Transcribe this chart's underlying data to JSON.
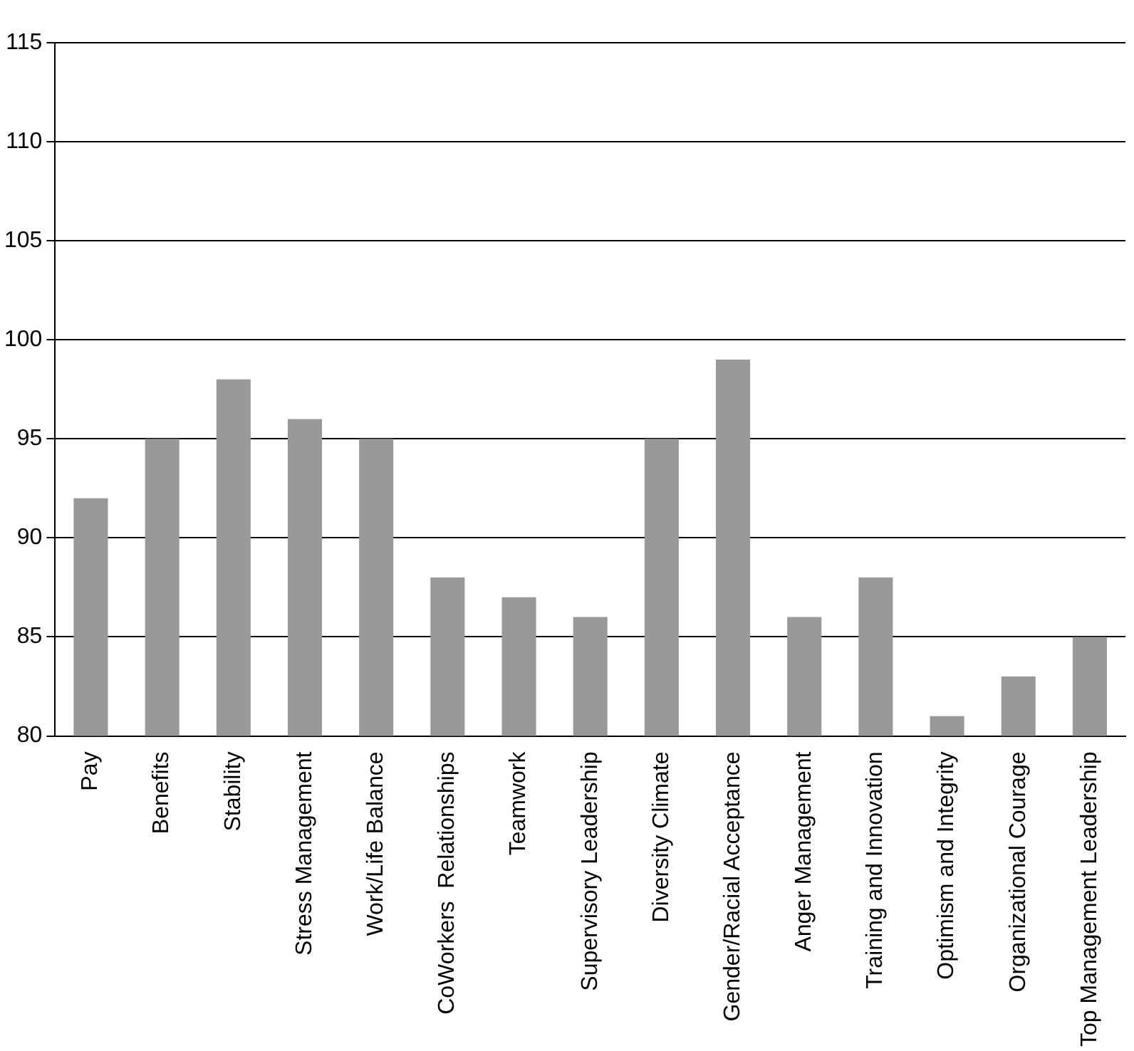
{
  "chart_data": {
    "type": "bar",
    "categories": [
      "Pay",
      "Benefits",
      "Stability",
      "Stress Management",
      "Work/Life Balance",
      "CoWorkers  Relationships",
      "Teamwork",
      "Supervisory Leadership",
      "Diversity Climate",
      "Gender/Racial Acceptance",
      "Anger Management",
      "Training and Innovation",
      "Optimism and Integrity",
      "Organizational Courage",
      "Top Management Leadership"
    ],
    "values": [
      92,
      95,
      98,
      96,
      95,
      88,
      87,
      86,
      95,
      99,
      86,
      88,
      81,
      83,
      85
    ],
    "color": "#999999",
    "ylim": [
      80,
      115
    ],
    "yticks": [
      80,
      85,
      90,
      95,
      100,
      105,
      110,
      115
    ],
    "grid": "y",
    "legend": false
  }
}
